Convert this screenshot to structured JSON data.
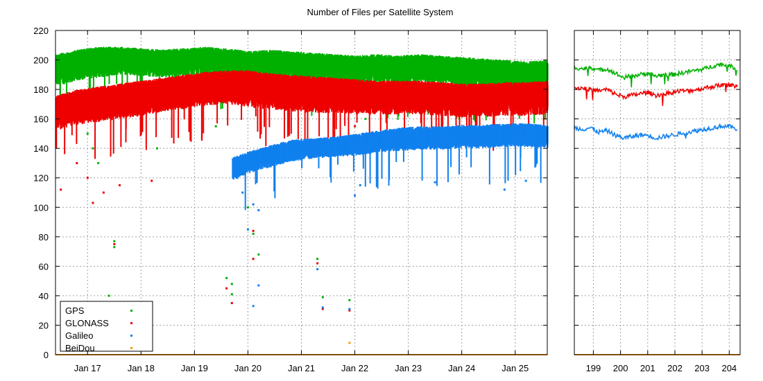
{
  "chart_data": [
    {
      "type": "scatter",
      "title": "Number of Files per Satellite System",
      "xlabel": "",
      "ylabel": "",
      "ylim": [
        0,
        220
      ],
      "yticks": [
        0,
        20,
        40,
        60,
        80,
        100,
        120,
        140,
        160,
        180,
        200,
        220
      ],
      "xlim": [
        16.4,
        25.6
      ],
      "xticks": [
        17,
        18,
        19,
        20,
        21,
        22,
        23,
        24,
        25
      ],
      "xtick_labels": [
        "Jan 17",
        "Jan 18",
        "Jan 19",
        "Jan 20",
        "Jan 21",
        "Jan 22",
        "Jan 23",
        "Jan 24",
        "Jan 25"
      ],
      "grid": true,
      "legend_position": "bottom-left",
      "series": [
        {
          "name": "GPS",
          "color": "#00b000",
          "x": [
            16.4,
            16.8,
            17.2,
            17.6,
            18.0,
            18.4,
            18.8,
            19.2,
            19.6,
            20.0,
            20.4,
            20.8,
            21.2,
            21.6,
            22.0,
            22.4,
            22.8,
            23.2,
            23.6,
            24.0,
            24.4,
            24.8,
            25.2,
            25.6
          ],
          "y": [
            194,
            198,
            200,
            201,
            200,
            199,
            200,
            201,
            200,
            198,
            199,
            198,
            197,
            196,
            195,
            196,
            195,
            196,
            194,
            193,
            192,
            191,
            190,
            191
          ],
          "band_low": [
            182,
            186,
            188,
            190,
            189,
            188,
            189,
            190,
            189,
            187,
            188,
            187,
            186,
            185,
            184,
            185,
            184,
            185,
            184,
            183,
            182,
            181,
            181,
            182
          ],
          "band_high": [
            204,
            207,
            209,
            209,
            208,
            207,
            208,
            209,
            208,
            206,
            207,
            206,
            205,
            204,
            203,
            204,
            203,
            204,
            203,
            202,
            201,
            200,
            199,
            200
          ],
          "outliers": [
            [
              17.0,
              150
            ],
            [
              17.1,
              140
            ],
            [
              17.2,
              130
            ],
            [
              17.5,
              77
            ],
            [
              17.5,
              73
            ],
            [
              17.4,
              40
            ],
            [
              17.3,
              12
            ],
            [
              18.3,
              140
            ],
            [
              19.4,
              155
            ],
            [
              19.6,
              52
            ],
            [
              19.7,
              48
            ],
            [
              19.7,
              41
            ],
            [
              20.0,
              100
            ],
            [
              20.1,
              82
            ],
            [
              20.2,
              68
            ],
            [
              21.3,
              65
            ],
            [
              21.4,
              39
            ],
            [
              21.9,
              37
            ],
            [
              22.2,
              160
            ],
            [
              22.3,
              175
            ]
          ]
        },
        {
          "name": "GLONASS",
          "color": "#ee0000",
          "x": [
            16.4,
            16.8,
            17.2,
            17.6,
            18.0,
            18.4,
            18.8,
            19.2,
            19.6,
            20.0,
            20.4,
            20.8,
            21.2,
            21.6,
            22.0,
            22.4,
            22.8,
            23.2,
            23.6,
            24.0,
            24.4,
            24.8,
            25.2,
            25.6
          ],
          "y": [
            165,
            168,
            170,
            172,
            174,
            177,
            179,
            181,
            182,
            182,
            181,
            180,
            179,
            179,
            178,
            177,
            177,
            177,
            176,
            175,
            175,
            176,
            176,
            177
          ],
          "band_low": [
            152,
            156,
            158,
            160,
            162,
            165,
            167,
            169,
            170,
            168,
            166,
            165,
            164,
            164,
            163,
            163,
            163,
            163,
            162,
            161,
            161,
            162,
            162,
            163
          ],
          "band_high": [
            176,
            180,
            182,
            184,
            186,
            188,
            190,
            192,
            193,
            193,
            191,
            190,
            189,
            188,
            187,
            186,
            186,
            186,
            185,
            184,
            184,
            185,
            185,
            186
          ],
          "outliers": [
            [
              16.5,
              112
            ],
            [
              16.8,
              130
            ],
            [
              17.0,
              120
            ],
            [
              17.1,
              103
            ],
            [
              17.3,
              110
            ],
            [
              17.5,
              75
            ],
            [
              17.4,
              35
            ],
            [
              17.6,
              115
            ],
            [
              18.2,
              118
            ],
            [
              19.6,
              45
            ],
            [
              19.7,
              35
            ],
            [
              20.1,
              84
            ],
            [
              20.1,
              65
            ],
            [
              21.3,
              62
            ],
            [
              21.4,
              31
            ],
            [
              21.9,
              30
            ],
            [
              22.0,
              155
            ]
          ]
        },
        {
          "name": "Galileo",
          "color": "#1080ee",
          "x": [
            19.7,
            20.0,
            20.4,
            20.8,
            21.2,
            21.6,
            22.0,
            22.4,
            22.8,
            23.2,
            23.6,
            24.0,
            24.4,
            24.8,
            25.2,
            25.6
          ],
          "y": [
            128,
            132,
            136,
            140,
            141,
            142,
            143,
            145,
            146,
            147,
            147,
            148,
            148,
            149,
            149,
            148
          ],
          "band_low": [
            118,
            123,
            127,
            131,
            133,
            134,
            135,
            137,
            138,
            139,
            139,
            140,
            140,
            141,
            141,
            140
          ],
          "band_high": [
            134,
            138,
            142,
            146,
            147,
            148,
            150,
            152,
            154,
            155,
            155,
            156,
            156,
            157,
            157,
            156
          ],
          "outliers": [
            [
              19.8,
              120
            ],
            [
              19.9,
              110
            ],
            [
              20.0,
              85
            ],
            [
              20.1,
              102
            ],
            [
              20.2,
              98
            ],
            [
              20.2,
              47
            ],
            [
              20.1,
              33
            ],
            [
              21.3,
              58
            ],
            [
              21.4,
              32
            ],
            [
              21.9,
              31
            ],
            [
              22.0,
              108
            ],
            [
              22.1,
              115
            ],
            [
              23.5,
              117
            ],
            [
              24.8,
              112
            ],
            [
              25.2,
              118
            ]
          ]
        },
        {
          "name": "BeiDou",
          "color": "#ff9900",
          "x": [
            16.4,
            25.6
          ],
          "y": [
            0,
            0
          ],
          "band_low": [
            0,
            0
          ],
          "band_high": [
            0,
            0
          ],
          "outliers": [
            [
              21.9,
              8
            ]
          ]
        }
      ]
    },
    {
      "type": "line",
      "title": "",
      "ylim": [
        0,
        220
      ],
      "xlim": [
        198.3,
        204.4
      ],
      "xticks": [
        199,
        200,
        201,
        202,
        203,
        204
      ],
      "xtick_labels": [
        "199",
        "200",
        "201",
        "202",
        "203",
        "204"
      ],
      "grid": true,
      "series": [
        {
          "name": "GPS",
          "color": "#00b000",
          "x": [
            198.3,
            198.6,
            198.9,
            199.2,
            199.5,
            199.8,
            200.1,
            200.4,
            200.7,
            201.0,
            201.3,
            201.6,
            201.9,
            202.2,
            202.5,
            202.8,
            203.1,
            203.4,
            203.7,
            204.0,
            204.3
          ],
          "y": [
            195,
            194,
            195,
            193,
            194,
            191,
            188,
            189,
            190,
            191,
            189,
            190,
            190,
            191,
            192,
            193,
            194,
            196,
            197,
            196,
            194
          ]
        },
        {
          "name": "GLONASS",
          "color": "#ee0000",
          "x": [
            198.3,
            198.6,
            198.9,
            199.2,
            199.5,
            199.8,
            200.1,
            200.4,
            200.7,
            201.0,
            201.3,
            201.6,
            201.9,
            202.2,
            202.5,
            202.8,
            203.1,
            203.4,
            203.7,
            204.0,
            204.3
          ],
          "y": [
            181,
            181,
            180,
            179,
            180,
            177,
            175,
            176,
            177,
            178,
            176,
            177,
            178,
            179,
            179,
            180,
            181,
            182,
            183,
            183,
            182
          ]
        },
        {
          "name": "Galileo",
          "color": "#1080ee",
          "x": [
            198.3,
            198.6,
            198.9,
            199.2,
            199.5,
            199.8,
            200.1,
            200.4,
            200.7,
            201.0,
            201.3,
            201.6,
            201.9,
            202.2,
            202.5,
            202.8,
            203.1,
            203.4,
            203.7,
            204.0,
            204.3
          ],
          "y": [
            154,
            153,
            154,
            151,
            152,
            149,
            147,
            148,
            149,
            149,
            147,
            148,
            149,
            150,
            151,
            152,
            153,
            154,
            155,
            155,
            153
          ]
        },
        {
          "name": "BeiDou",
          "color": "#ff9900",
          "x": [
            198.3,
            204.4
          ],
          "y": [
            0,
            0
          ]
        }
      ]
    }
  ],
  "legend": {
    "items": [
      {
        "label": "GPS",
        "color": "#00b000"
      },
      {
        "label": "GLONASS",
        "color": "#ee0000"
      },
      {
        "label": "Galileo",
        "color": "#1080ee"
      },
      {
        "label": "BeiDou",
        "color": "#ff9900"
      }
    ]
  }
}
